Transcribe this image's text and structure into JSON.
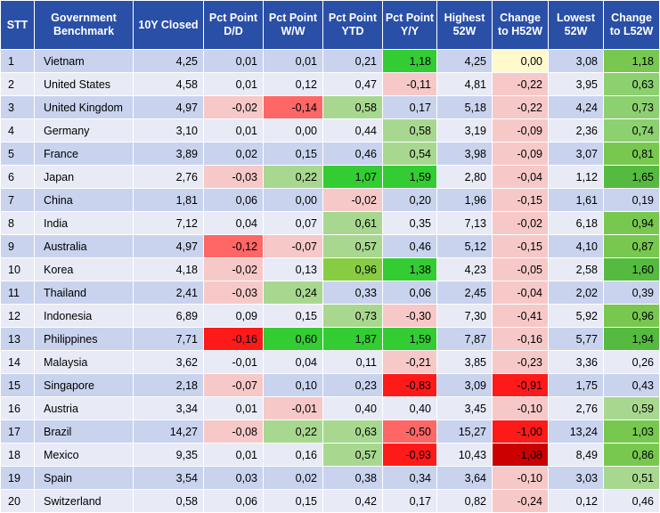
{
  "headers": [
    "STT",
    "Government Benchmark",
    "10Y Closed",
    "Pct Point D/D",
    "Pct Point W/W",
    "Pct Point YTD",
    "Pct Point Y/Y",
    "Highest 52W",
    "Change to H52W",
    "Lowest 52W",
    "Change to L52W"
  ],
  "rows": [
    {
      "stt": "1",
      "name": "Vietnam",
      "closed": "4,25",
      "dd": "0,01",
      "ww": "0,01",
      "ytd": "0,21",
      "yy": "1,18",
      "h52": "4,25",
      "ch52": "0,00",
      "l52": "3,08",
      "cl52": "1,18"
    },
    {
      "stt": "2",
      "name": "United States",
      "closed": "4,58",
      "dd": "0,01",
      "ww": "0,12",
      "ytd": "0,47",
      "yy": "-0,11",
      "h52": "4,81",
      "ch52": "-0,22",
      "l52": "3,95",
      "cl52": "0,63"
    },
    {
      "stt": "3",
      "name": "United Kingdom",
      "closed": "4,97",
      "dd": "-0,02",
      "ww": "-0,14",
      "ytd": "0,58",
      "yy": "0,17",
      "h52": "5,18",
      "ch52": "-0,22",
      "l52": "4,24",
      "cl52": "0,73"
    },
    {
      "stt": "4",
      "name": "Germany",
      "closed": "3,10",
      "dd": "0,01",
      "ww": "0,00",
      "ytd": "0,44",
      "yy": "0,58",
      "h52": "3,19",
      "ch52": "-0,09",
      "l52": "2,36",
      "cl52": "0,74"
    },
    {
      "stt": "5",
      "name": "France",
      "closed": "3,89",
      "dd": "0,02",
      "ww": "0,15",
      "ytd": "0,46",
      "yy": "0,54",
      "h52": "3,98",
      "ch52": "-0,09",
      "l52": "3,07",
      "cl52": "0,81"
    },
    {
      "stt": "6",
      "name": "Japan",
      "closed": "2,76",
      "dd": "-0,03",
      "ww": "0,22",
      "ytd": "1,07",
      "yy": "1,59",
      "h52": "2,80",
      "ch52": "-0,04",
      "l52": "1,12",
      "cl52": "1,65"
    },
    {
      "stt": "7",
      "name": "China",
      "closed": "1,81",
      "dd": "0,06",
      "ww": "0,00",
      "ytd": "-0,02",
      "yy": "0,20",
      "h52": "1,96",
      "ch52": "-0,15",
      "l52": "1,61",
      "cl52": "0,19"
    },
    {
      "stt": "8",
      "name": "India",
      "closed": "7,12",
      "dd": "0,04",
      "ww": "0,07",
      "ytd": "0,61",
      "yy": "0,35",
      "h52": "7,13",
      "ch52": "-0,02",
      "l52": "6,18",
      "cl52": "0,94"
    },
    {
      "stt": "9",
      "name": "Australia",
      "closed": "4,97",
      "dd": "-0,12",
      "ww": "-0,07",
      "ytd": "0,57",
      "yy": "0,46",
      "h52": "5,12",
      "ch52": "-0,15",
      "l52": "4,10",
      "cl52": "0,87"
    },
    {
      "stt": "10",
      "name": "Korea",
      "closed": "4,18",
      "dd": "-0,02",
      "ww": "0,13",
      "ytd": "0,96",
      "yy": "1,38",
      "h52": "4,23",
      "ch52": "-0,05",
      "l52": "2,58",
      "cl52": "1,60"
    },
    {
      "stt": "11",
      "name": "Thailand",
      "closed": "2,41",
      "dd": "-0,03",
      "ww": "0,24",
      "ytd": "0,33",
      "yy": "0,06",
      "h52": "2,45",
      "ch52": "-0,04",
      "l52": "2,02",
      "cl52": "0,39"
    },
    {
      "stt": "12",
      "name": "Indonesia",
      "closed": "6,89",
      "dd": "0,09",
      "ww": "0,15",
      "ytd": "0,73",
      "yy": "-0,30",
      "h52": "7,30",
      "ch52": "-0,41",
      "l52": "5,92",
      "cl52": "0,96"
    },
    {
      "stt": "13",
      "name": "Philippines",
      "closed": "7,71",
      "dd": "-0,16",
      "ww": "0,60",
      "ytd": "1,87",
      "yy": "1,59",
      "h52": "7,87",
      "ch52": "-0,16",
      "l52": "5,77",
      "cl52": "1,94"
    },
    {
      "stt": "14",
      "name": "Malaysia",
      "closed": "3,62",
      "dd": "-0,01",
      "ww": "0,04",
      "ytd": "0,11",
      "yy": "-0,21",
      "h52": "3,85",
      "ch52": "-0,23",
      "l52": "3,36",
      "cl52": "0,26"
    },
    {
      "stt": "15",
      "name": "Singapore",
      "closed": "2,18",
      "dd": "-0,07",
      "ww": "0,10",
      "ytd": "0,23",
      "yy": "-0,83",
      "h52": "3,09",
      "ch52": "-0,91",
      "l52": "1,75",
      "cl52": "0,43"
    },
    {
      "stt": "16",
      "name": "Austria",
      "closed": "3,34",
      "dd": "0,01",
      "ww": "-0,01",
      "ytd": "0,40",
      "yy": "0,40",
      "h52": "3,45",
      "ch52": "-0,10",
      "l52": "2,76",
      "cl52": "0,59"
    },
    {
      "stt": "17",
      "name": "Brazil",
      "closed": "14,27",
      "dd": "-0,08",
      "ww": "0,22",
      "ytd": "0,63",
      "yy": "-0,50",
      "h52": "15,27",
      "ch52": "-1,00",
      "l52": "13,24",
      "cl52": "1,03"
    },
    {
      "stt": "18",
      "name": "Mexico",
      "closed": "9,35",
      "dd": "0,01",
      "ww": "0,16",
      "ytd": "0,57",
      "yy": "-0,93",
      "h52": "10,43",
      "ch52": "-1,08",
      "l52": "8,49",
      "cl52": "0,86"
    },
    {
      "stt": "19",
      "name": "Spain",
      "closed": "3,54",
      "dd": "0,03",
      "ww": "0,02",
      "ytd": "0,38",
      "yy": "0,34",
      "h52": "3,64",
      "ch52": "-0,10",
      "l52": "3,03",
      "cl52": "0,51"
    },
    {
      "stt": "20",
      "name": "Switzerland",
      "closed": "0,58",
      "dd": "0,06",
      "ww": "0,15",
      "ytd": "0,42",
      "yy": "0,17",
      "h52": "0,82",
      "ch52": "-0,24",
      "l52": "0,12",
      "cl52": "0,46"
    }
  ],
  "highlights": {
    "1": {
      "yy": "#33cc33",
      "ch52": "#fff9cc",
      "cl52": "#78c850"
    },
    "2": {
      "yy": "#f7c8c8",
      "ch52": "#f7c8c8",
      "cl52": "#8cd070"
    },
    "3": {
      "dd": "#f7c8c8",
      "ww": "#ff6666",
      "ytd": "#a8d890",
      "ch52": "#f7c8c8",
      "cl52": "#8cd070"
    },
    "4": {
      "yy": "#a8d890",
      "ch52": "#f7c8c8",
      "cl52": "#8cd070"
    },
    "5": {
      "yy": "#a8d890",
      "ch52": "#f7c8c8",
      "cl52": "#78c850"
    },
    "6": {
      "dd": "#f7c8c8",
      "ww": "#a8d890",
      "ytd": "#33cc33",
      "yy": "#33cc33",
      "ch52": "#f7c8c8",
      "cl52": "#55bb40"
    },
    "7": {
      "ytd": "#f7c8c8",
      "ch52": "#f7c8c8"
    },
    "8": {
      "ytd": "#a8d890",
      "ch52": "#f7c8c8",
      "cl52": "#78c850"
    },
    "9": {
      "dd": "#ff6666",
      "ww": "#f7c8c8",
      "ytd": "#a8d890",
      "ch52": "#f7c8c8",
      "cl52": "#78c850"
    },
    "10": {
      "dd": "#f7c8c8",
      "ytd": "#88cc44",
      "yy": "#33cc33",
      "ch52": "#f7c8c8",
      "cl52": "#55bb40"
    },
    "11": {
      "dd": "#f7c8c8",
      "ww": "#a8d890",
      "ch52": "#f7c8c8"
    },
    "12": {
      "ytd": "#a8d890",
      "yy": "#f7c8c8",
      "ch52": "#f7c8c8",
      "cl52": "#78c850"
    },
    "13": {
      "dd": "#ff1a1a",
      "ww": "#33cc33",
      "ytd": "#33cc33",
      "yy": "#33cc33",
      "ch52": "#f7c8c8",
      "cl52": "#55bb40"
    },
    "14": {
      "yy": "#f7c8c8",
      "ch52": "#f7c8c8"
    },
    "15": {
      "dd": "#f7c8c8",
      "yy": "#ff1a1a",
      "ch52": "#ff1a1a"
    },
    "16": {
      "ww": "#f7c8c8",
      "ch52": "#f7c8c8",
      "cl52": "#a8d890"
    },
    "17": {
      "dd": "#f7c8c8",
      "ww": "#a8d890",
      "ytd": "#a8d890",
      "yy": "#ff6666",
      "ch52": "#ff1a1a",
      "cl52": "#78c850"
    },
    "18": {
      "ytd": "#a8d890",
      "yy": "#ff1a1a",
      "ch52": "#cc0000",
      "cl52": "#78c850"
    },
    "19": {
      "ch52": "#f7c8c8",
      "cl52": "#a8d890"
    },
    "20": {
      "ch52": "#f7c8c8"
    }
  }
}
